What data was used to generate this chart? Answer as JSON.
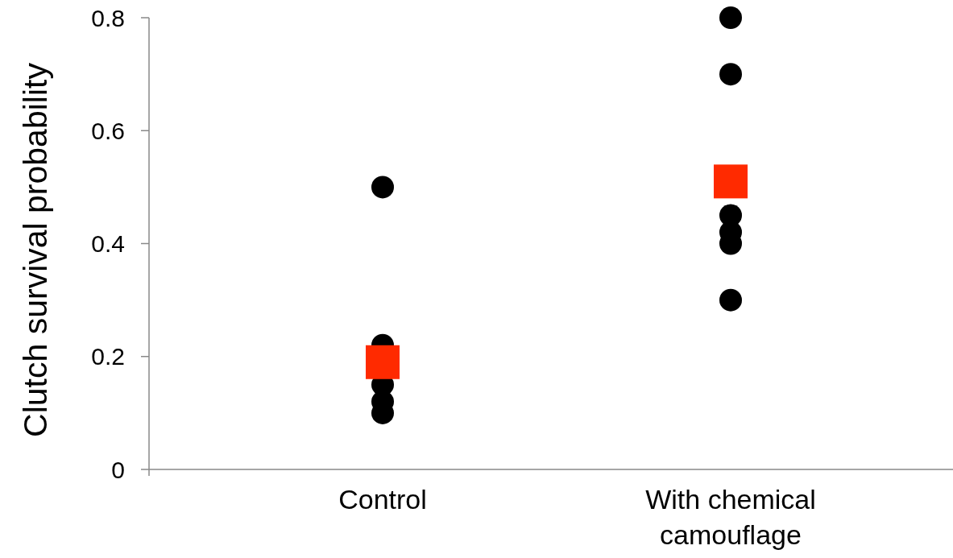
{
  "chart_data": {
    "type": "scatter",
    "ylabel": "Clutch survival probability",
    "categories": [
      "Control",
      "With chemical camouflage"
    ],
    "ylim": [
      0,
      0.8
    ],
    "yticks": [
      0,
      0.2,
      0.4,
      0.6,
      0.8
    ],
    "grid": false,
    "series": [
      {
        "color": "#000000",
        "marker": "circle",
        "x": [
          "Control",
          "Control",
          "Control",
          "Control",
          "Control",
          "With chemical camouflage",
          "With chemical camouflage",
          "With chemical camouflage",
          "With chemical camouflage",
          "With chemical camouflage",
          "With chemical camouflage"
        ],
        "values": [
          0.5,
          0.22,
          0.15,
          0.12,
          0.1,
          0.8,
          0.7,
          0.45,
          0.42,
          0.4,
          0.3
        ]
      },
      {
        "color": "#ff2a00",
        "marker": "square",
        "x": [
          "Control",
          "With chemical camouflage"
        ],
        "values": [
          0.19,
          0.51
        ]
      }
    ]
  }
}
